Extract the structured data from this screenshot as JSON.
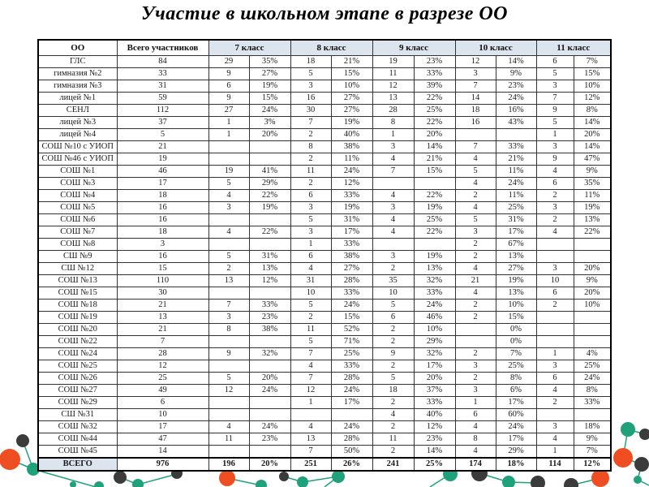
{
  "title": "Участие в школьном этапе в разрезе ОО",
  "table": {
    "headers": {
      "oo": "ОО",
      "total": "Всего участников",
      "classes": [
        "7 класс",
        "8 класс",
        "9 класс",
        "10 класс",
        "11 класс"
      ]
    },
    "rows": [
      {
        "name": "ГЛС",
        "total": "84",
        "cells": [
          "29",
          "35%",
          "18",
          "21%",
          "19",
          "23%",
          "12",
          "14%",
          "6",
          "7%"
        ]
      },
      {
        "name": "гимназия №2",
        "total": "33",
        "cells": [
          "9",
          "27%",
          "5",
          "15%",
          "11",
          "33%",
          "3",
          "9%",
          "5",
          "15%"
        ]
      },
      {
        "name": "гимназия №3",
        "total": "31",
        "cells": [
          "6",
          "19%",
          "3",
          "10%",
          "12",
          "39%",
          "7",
          "23%",
          "3",
          "10%"
        ]
      },
      {
        "name": "лицей №1",
        "total": "59",
        "cells": [
          "9",
          "15%",
          "16",
          "27%",
          "13",
          "22%",
          "14",
          "24%",
          "7",
          "12%"
        ]
      },
      {
        "name": "СЕНЛ",
        "total": "112",
        "cells": [
          "27",
          "24%",
          "30",
          "27%",
          "28",
          "25%",
          "18",
          "16%",
          "9",
          "8%"
        ]
      },
      {
        "name": "лицей №3",
        "total": "37",
        "cells": [
          "1",
          "3%",
          "7",
          "19%",
          "8",
          "22%",
          "16",
          "43%",
          "5",
          "14%"
        ]
      },
      {
        "name": "лицей №4",
        "total": "5",
        "cells": [
          "1",
          "20%",
          "2",
          "40%",
          "1",
          "20%",
          "",
          "",
          "1",
          "20%"
        ]
      },
      {
        "name": "СОШ №10 с УИОП",
        "total": "21",
        "cells": [
          "",
          "",
          "8",
          "38%",
          "3",
          "14%",
          "7",
          "33%",
          "3",
          "14%"
        ]
      },
      {
        "name": "СОШ №46 с УИОП",
        "total": "19",
        "cells": [
          "",
          "",
          "2",
          "11%",
          "4",
          "21%",
          "4",
          "21%",
          "9",
          "47%"
        ]
      },
      {
        "name": "СОШ №1",
        "total": "46",
        "cells": [
          "19",
          "41%",
          "11",
          "24%",
          "7",
          "15%",
          "5",
          "11%",
          "4",
          "9%"
        ]
      },
      {
        "name": "СОШ №3",
        "total": "17",
        "cells": [
          "5",
          "29%",
          "2",
          "12%",
          "",
          "",
          "4",
          "24%",
          "6",
          "35%"
        ]
      },
      {
        "name": "СОШ №4",
        "total": "18",
        "cells": [
          "4",
          "22%",
          "6",
          "33%",
          "4",
          "22%",
          "2",
          "11%",
          "2",
          "11%"
        ]
      },
      {
        "name": "СОШ №5",
        "total": "16",
        "cells": [
          "3",
          "19%",
          "3",
          "19%",
          "3",
          "19%",
          "4",
          "25%",
          "3",
          "19%"
        ]
      },
      {
        "name": "СОШ №6",
        "total": "16",
        "cells": [
          "",
          "",
          "5",
          "31%",
          "4",
          "25%",
          "5",
          "31%",
          "2",
          "13%"
        ]
      },
      {
        "name": "СОШ №7",
        "total": "18",
        "cells": [
          "4",
          "22%",
          "3",
          "17%",
          "4",
          "22%",
          "3",
          "17%",
          "4",
          "22%"
        ]
      },
      {
        "name": "СОШ №8",
        "total": "3",
        "cells": [
          "",
          "",
          "1",
          "33%",
          "",
          "",
          "2",
          "67%",
          "",
          ""
        ]
      },
      {
        "name": "СШ №9",
        "total": "16",
        "cells": [
          "5",
          "31%",
          "6",
          "38%",
          "3",
          "19%",
          "2",
          "13%",
          "",
          ""
        ]
      },
      {
        "name": "СШ №12",
        "total": "15",
        "cells": [
          "2",
          "13%",
          "4",
          "27%",
          "2",
          "13%",
          "4",
          "27%",
          "3",
          "20%"
        ]
      },
      {
        "name": "СОШ №13",
        "total": "110",
        "cells": [
          "13",
          "12%",
          "31",
          "28%",
          "35",
          "32%",
          "21",
          "19%",
          "10",
          "9%"
        ]
      },
      {
        "name": "СОШ №15",
        "total": "30",
        "cells": [
          "",
          "",
          "10",
          "33%",
          "10",
          "33%",
          "4",
          "13%",
          "6",
          "20%"
        ]
      },
      {
        "name": "СОШ №18",
        "total": "21",
        "cells": [
          "7",
          "33%",
          "5",
          "24%",
          "5",
          "24%",
          "2",
          "10%",
          "2",
          "10%"
        ]
      },
      {
        "name": "СОШ №19",
        "total": "13",
        "cells": [
          "3",
          "23%",
          "2",
          "15%",
          "6",
          "46%",
          "2",
          "15%",
          "",
          ""
        ]
      },
      {
        "name": "СОШ №20",
        "total": "21",
        "cells": [
          "8",
          "38%",
          "11",
          "52%",
          "2",
          "10%",
          "",
          "0%",
          "",
          ""
        ]
      },
      {
        "name": "СОШ №22",
        "total": "7",
        "cells": [
          "",
          "",
          "5",
          "71%",
          "2",
          "29%",
          "",
          "0%",
          "",
          ""
        ]
      },
      {
        "name": "СОШ №24",
        "total": "28",
        "cells": [
          "9",
          "32%",
          "7",
          "25%",
          "9",
          "32%",
          "2",
          "7%",
          "1",
          "4%"
        ]
      },
      {
        "name": "СОШ №25",
        "total": "12",
        "cells": [
          "",
          "",
          "4",
          "33%",
          "2",
          "17%",
          "3",
          "25%",
          "3",
          "25%"
        ]
      },
      {
        "name": "СОШ №26",
        "total": "25",
        "cells": [
          "5",
          "20%",
          "7",
          "28%",
          "5",
          "20%",
          "2",
          "8%",
          "6",
          "24%"
        ]
      },
      {
        "name": "СОШ №27",
        "total": "49",
        "cells": [
          "12",
          "24%",
          "12",
          "24%",
          "18",
          "37%",
          "3",
          "6%",
          "4",
          "8%"
        ]
      },
      {
        "name": "СОШ №29",
        "total": "6",
        "cells": [
          "",
          "",
          "1",
          "17%",
          "2",
          "33%",
          "1",
          "17%",
          "2",
          "33%"
        ]
      },
      {
        "name": "СШ №31",
        "total": "10",
        "cells": [
          "",
          "",
          "",
          "",
          "4",
          "40%",
          "6",
          "60%",
          "",
          ""
        ]
      },
      {
        "name": "СОШ №32",
        "total": "17",
        "cells": [
          "4",
          "24%",
          "4",
          "24%",
          "2",
          "12%",
          "4",
          "24%",
          "3",
          "18%"
        ]
      },
      {
        "name": "СОШ №44",
        "total": "47",
        "cells": [
          "11",
          "23%",
          "13",
          "28%",
          "11",
          "23%",
          "8",
          "17%",
          "4",
          "9%"
        ]
      },
      {
        "name": "СОШ №45",
        "total": "14",
        "cells": [
          "",
          "",
          "7",
          "50%",
          "2",
          "14%",
          "4",
          "29%",
          "1",
          "7%"
        ]
      }
    ],
    "total_row": {
      "name": "ВСЕГО",
      "total": "976",
      "cells": [
        "196",
        "20%",
        "251",
        "26%",
        "241",
        "25%",
        "174",
        "18%",
        "114",
        "12%"
      ]
    }
  },
  "colors": {
    "header_fill": "#dce4ee",
    "table_border": "#333333",
    "accent_teal": "#1fa17c",
    "accent_dark": "#3b3b3b",
    "accent_orange": "#ef4e23"
  }
}
